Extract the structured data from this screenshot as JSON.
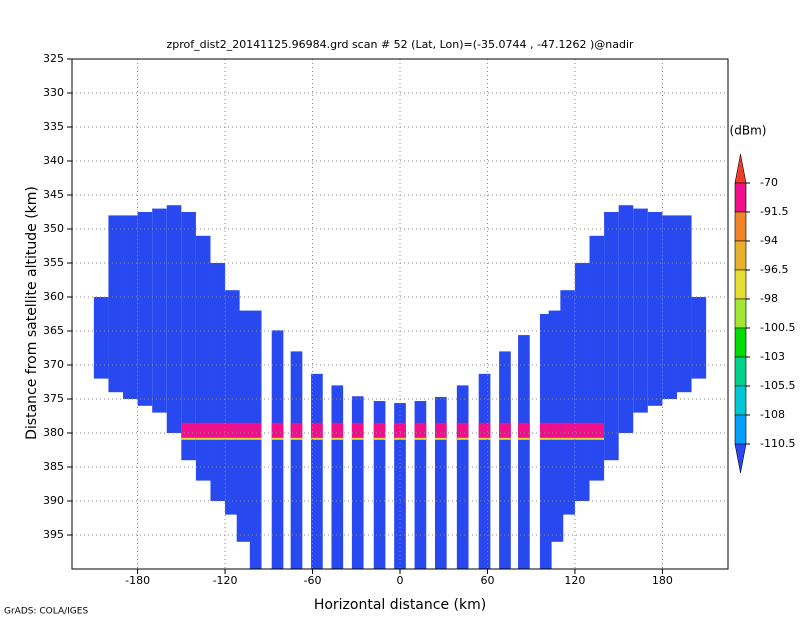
{
  "chart_data": {
    "type": "profile",
    "title": "zprof_dist2_20141125.96984.grd  scan # 52  (Lat, Lon)=(-35.0744 , -47.1262 )@nadir",
    "xlabel": "Horizontal distance (km)",
    "ylabel": "Distance from satellite altitude (km)",
    "colorbar_title": "(dBm)",
    "credit": "GrADS: COLA/IGES",
    "xlim": [
      -225,
      225
    ],
    "xticks": [
      -180,
      -120,
      -60,
      0,
      60,
      120,
      180
    ],
    "ylim": [
      400,
      325
    ],
    "yticks": [
      325,
      330,
      335,
      340,
      345,
      350,
      355,
      360,
      365,
      370,
      375,
      380,
      385,
      390,
      395
    ],
    "grid": true,
    "levels": [
      -70,
      -91.5,
      -94,
      -96.5,
      -98,
      -100.5,
      -103,
      -105.5,
      -108,
      -110.5
    ],
    "colors": [
      "#f03c28",
      "#f0108c",
      "#f08228",
      "#e6af2d",
      "#e6dc32",
      "#a0e632",
      "#00dc00",
      "#00d28c",
      "#00c8d2",
      "#00a0ff",
      "#2848f0"
    ],
    "field_value": -115,
    "wings": {
      "width": 10,
      "x": [
        -205,
        -195,
        -185,
        -175,
        -165,
        -155,
        -145,
        -135,
        -125,
        -115,
        -107,
        107,
        115,
        125,
        135,
        145,
        155,
        165,
        175,
        185,
        195,
        205
      ],
      "top": [
        360,
        348,
        348,
        347.5,
        347,
        346.5,
        347.5,
        351,
        355,
        359,
        362,
        362,
        359,
        355,
        351,
        347.5,
        346.5,
        347,
        347.5,
        348,
        348,
        360
      ],
      "bottom": [
        372,
        374,
        375,
        376,
        377,
        380,
        384,
        387,
        390,
        392,
        396,
        396,
        392,
        390,
        387,
        384,
        380,
        377,
        376,
        375,
        374,
        372
      ]
    },
    "strips": {
      "width": 8,
      "x": [
        -99,
        -84,
        -71,
        -57,
        -43,
        -29,
        -14,
        0,
        14,
        28,
        43,
        58,
        72,
        85,
        100
      ],
      "top": [
        362,
        364.9,
        368,
        371.3,
        373,
        374.6,
        375.3,
        375.6,
        375.3,
        374.7,
        373,
        371.3,
        368,
        365.6,
        362.5
      ],
      "bottom": [
        400,
        400,
        400,
        400,
        400,
        400,
        400,
        400,
        400,
        400,
        400,
        400,
        400,
        400,
        400
      ]
    },
    "surface": {
      "top": 378.5,
      "bottom": 381,
      "xmin": -147,
      "xmax": 141,
      "value": -80
    }
  }
}
